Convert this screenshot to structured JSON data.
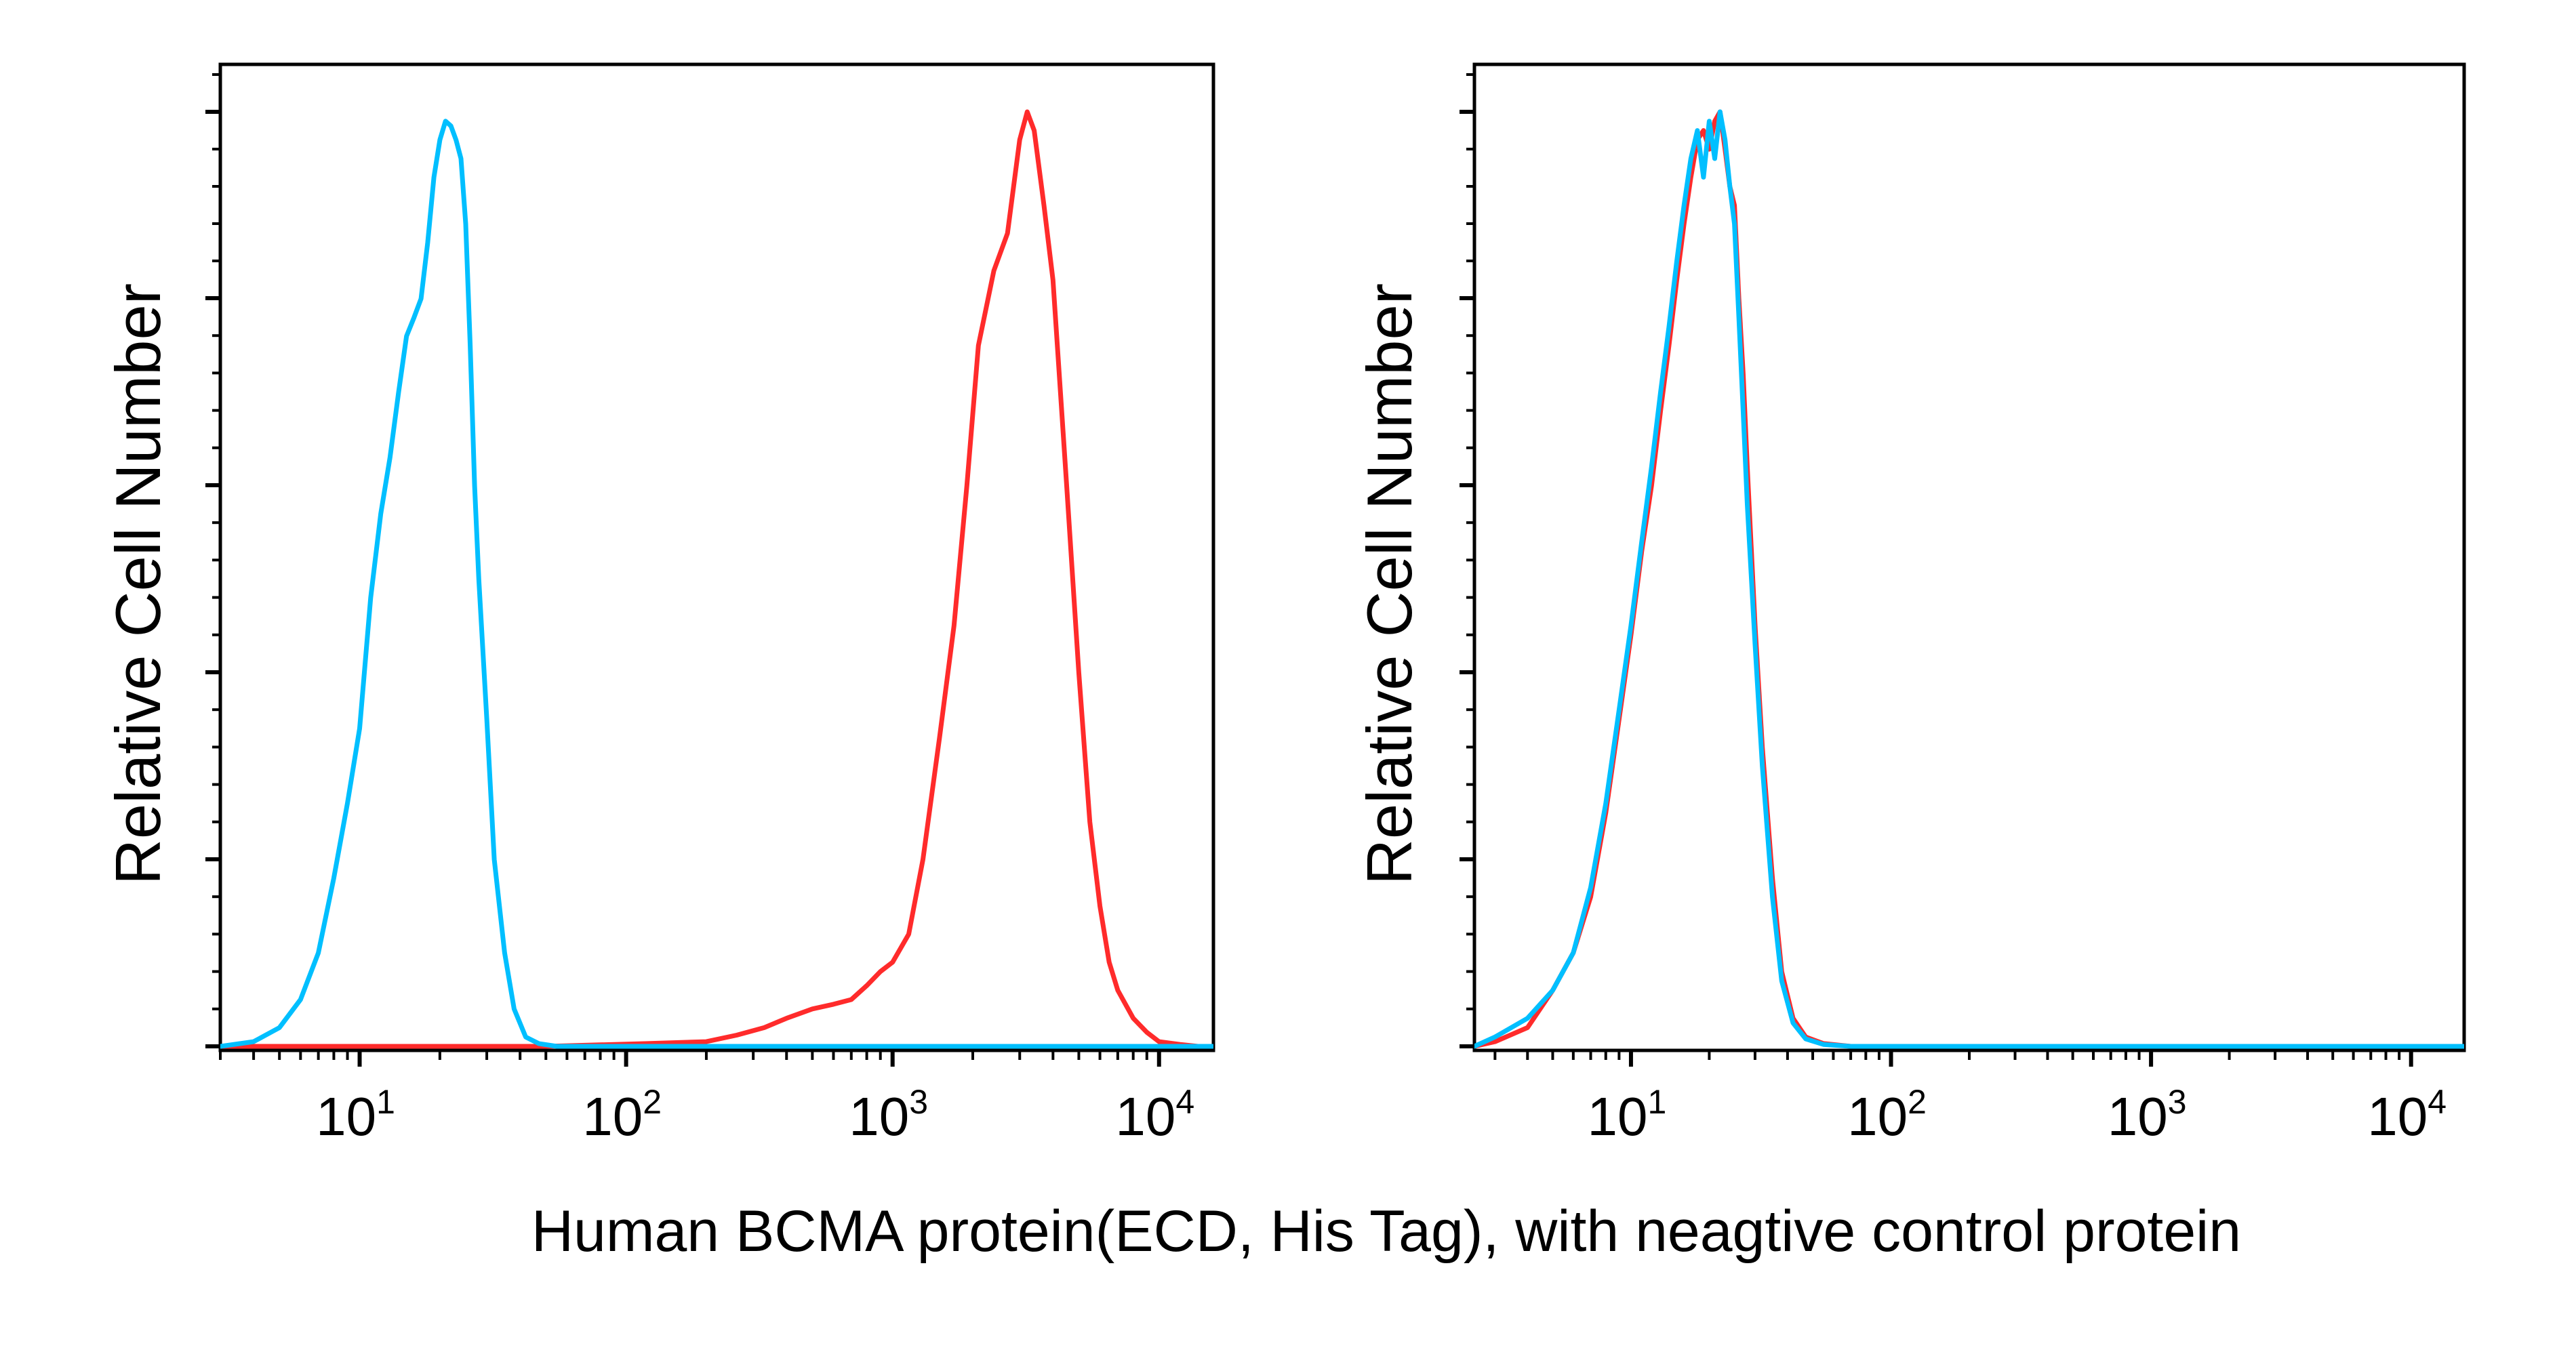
{
  "figure": {
    "xlabel": "Human BCMA protein(ECD, His Tag), with neagtive control protein"
  },
  "colors": {
    "red": "#ff2b2b",
    "blue": "#00bfff",
    "axis": "#000000"
  },
  "chart_data": [
    {
      "type": "area",
      "ylabel": "Relative Cell Number",
      "x_scale": "log",
      "xlim": [
        3,
        16000
      ],
      "ylim": [
        0,
        1.02
      ],
      "x_tick_labels": [
        {
          "base": "10",
          "exp": "1"
        },
        {
          "base": "10",
          "exp": "2"
        },
        {
          "base": "10",
          "exp": "3"
        },
        {
          "base": "10",
          "exp": "4"
        }
      ],
      "x_tick_values": [
        10,
        100,
        1000,
        10000
      ],
      "grid": false,
      "series": [
        {
          "color": "red",
          "x": [
            3,
            50,
            120,
            200,
            260,
            330,
            400,
            500,
            600,
            700,
            800,
            900,
            1000,
            1150,
            1300,
            1500,
            1700,
            1900,
            2100,
            2400,
            2700,
            3000,
            3200,
            3400,
            3700,
            4000,
            4500,
            5000,
            5500,
            6000,
            6500,
            7000,
            8000,
            9000,
            10000,
            12000,
            14000,
            16000
          ],
          "y": [
            0.0,
            0.0,
            0.003,
            0.005,
            0.012,
            0.02,
            0.03,
            0.04,
            0.045,
            0.05,
            0.065,
            0.08,
            0.09,
            0.12,
            0.2,
            0.33,
            0.45,
            0.6,
            0.75,
            0.83,
            0.87,
            0.97,
            1.0,
            0.98,
            0.9,
            0.82,
            0.6,
            0.4,
            0.24,
            0.15,
            0.09,
            0.06,
            0.03,
            0.015,
            0.005,
            0.002,
            0.0,
            0.0
          ]
        },
        {
          "color": "blue",
          "x": [
            3,
            4,
            5,
            6,
            7,
            8,
            9,
            10,
            11,
            12,
            13,
            14,
            15,
            16,
            17,
            18,
            19,
            20,
            21,
            22,
            23,
            24,
            25,
            26,
            27,
            28,
            30,
            32,
            35,
            38,
            42,
            47,
            55,
            70,
            100,
            200,
            500,
            1000,
            5000,
            16000
          ],
          "y": [
            0.0,
            0.005,
            0.02,
            0.05,
            0.1,
            0.18,
            0.26,
            0.34,
            0.48,
            0.57,
            0.63,
            0.7,
            0.76,
            0.78,
            0.8,
            0.86,
            0.93,
            0.97,
            0.99,
            0.985,
            0.97,
            0.95,
            0.88,
            0.75,
            0.6,
            0.5,
            0.35,
            0.2,
            0.1,
            0.04,
            0.01,
            0.003,
            0.0,
            0.0,
            0.0,
            0.0,
            0.0,
            0.0,
            0.0,
            0.0
          ]
        }
      ]
    },
    {
      "type": "area",
      "ylabel": "Relative Cell Number",
      "x_scale": "log",
      "xlim": [
        2.5,
        16000
      ],
      "ylim": [
        0,
        1.02
      ],
      "x_tick_labels": [
        {
          "base": "10",
          "exp": "1"
        },
        {
          "base": "10",
          "exp": "2"
        },
        {
          "base": "10",
          "exp": "3"
        },
        {
          "base": "10",
          "exp": "4"
        }
      ],
      "x_tick_values": [
        10,
        100,
        1000,
        10000
      ],
      "grid": false,
      "series": [
        {
          "color": "red",
          "x": [
            2.5,
            3,
            4,
            5,
            6,
            7,
            8,
            9,
            10,
            11,
            12,
            13,
            14,
            15,
            16,
            17,
            18,
            19,
            20,
            21,
            22,
            23,
            24,
            25,
            26,
            27,
            28,
            30,
            32,
            35,
            38,
            42,
            47,
            55,
            70,
            100,
            1000,
            16000
          ],
          "y": [
            0.0,
            0.005,
            0.02,
            0.06,
            0.1,
            0.16,
            0.25,
            0.35,
            0.44,
            0.53,
            0.6,
            0.68,
            0.75,
            0.82,
            0.88,
            0.93,
            0.97,
            0.98,
            0.96,
            0.99,
            1.0,
            0.96,
            0.92,
            0.9,
            0.8,
            0.72,
            0.62,
            0.45,
            0.32,
            0.18,
            0.08,
            0.03,
            0.01,
            0.003,
            0.0,
            0.0,
            0.0,
            0.0
          ]
        },
        {
          "color": "blue",
          "x": [
            2.5,
            3,
            4,
            5,
            6,
            7,
            8,
            9,
            10,
            11,
            12,
            13,
            14,
            15,
            16,
            17,
            18,
            19,
            20,
            21,
            22,
            23,
            24,
            25,
            26,
            27,
            28,
            30,
            32,
            35,
            38,
            42,
            47,
            55,
            70,
            100,
            1000,
            16000
          ],
          "y": [
            0.0,
            0.01,
            0.03,
            0.06,
            0.1,
            0.17,
            0.26,
            0.36,
            0.45,
            0.54,
            0.62,
            0.7,
            0.77,
            0.84,
            0.9,
            0.95,
            0.98,
            0.93,
            0.99,
            0.95,
            1.0,
            0.97,
            0.92,
            0.88,
            0.78,
            0.68,
            0.58,
            0.43,
            0.3,
            0.16,
            0.07,
            0.025,
            0.008,
            0.002,
            0.0,
            0.0,
            0.0,
            0.0
          ]
        }
      ]
    }
  ]
}
